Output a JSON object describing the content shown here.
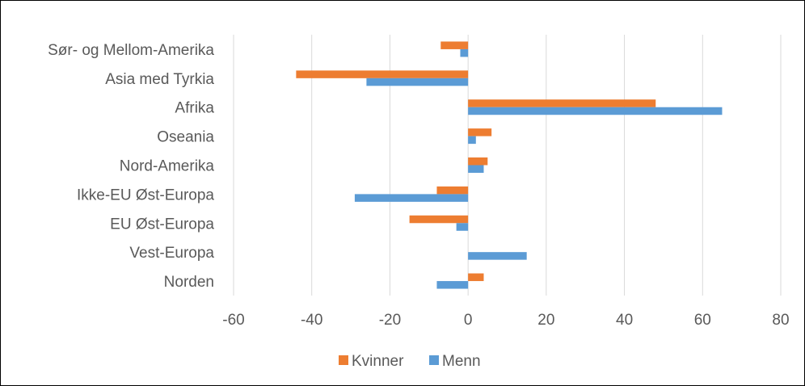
{
  "chart_data": {
    "type": "bar",
    "orientation": "horizontal",
    "categories": [
      "Sør- og Mellom-Amerika",
      "Asia med Tyrkia",
      "Afrika",
      "Oseania",
      "Nord-Amerika",
      "Ikke-EU Øst-Europa",
      "EU Øst-Europa",
      "Vest-Europa",
      "Norden"
    ],
    "series": [
      {
        "name": "Kvinner",
        "color": "#ED7D31",
        "values": [
          -7,
          -44,
          48,
          6,
          5,
          -8,
          -15,
          0,
          4
        ]
      },
      {
        "name": "Menn",
        "color": "#5B9BD5",
        "values": [
          -2,
          -26,
          65,
          2,
          4,
          -29,
          -3,
          15,
          -8
        ]
      }
    ],
    "xlim": [
      -60,
      80
    ],
    "xticks": [
      -60,
      -40,
      -20,
      0,
      20,
      40,
      60,
      80
    ],
    "grid": true,
    "legend_position": "bottom",
    "gridline_color": "#D9D9D9",
    "axis_color": "#D9D9D9"
  }
}
